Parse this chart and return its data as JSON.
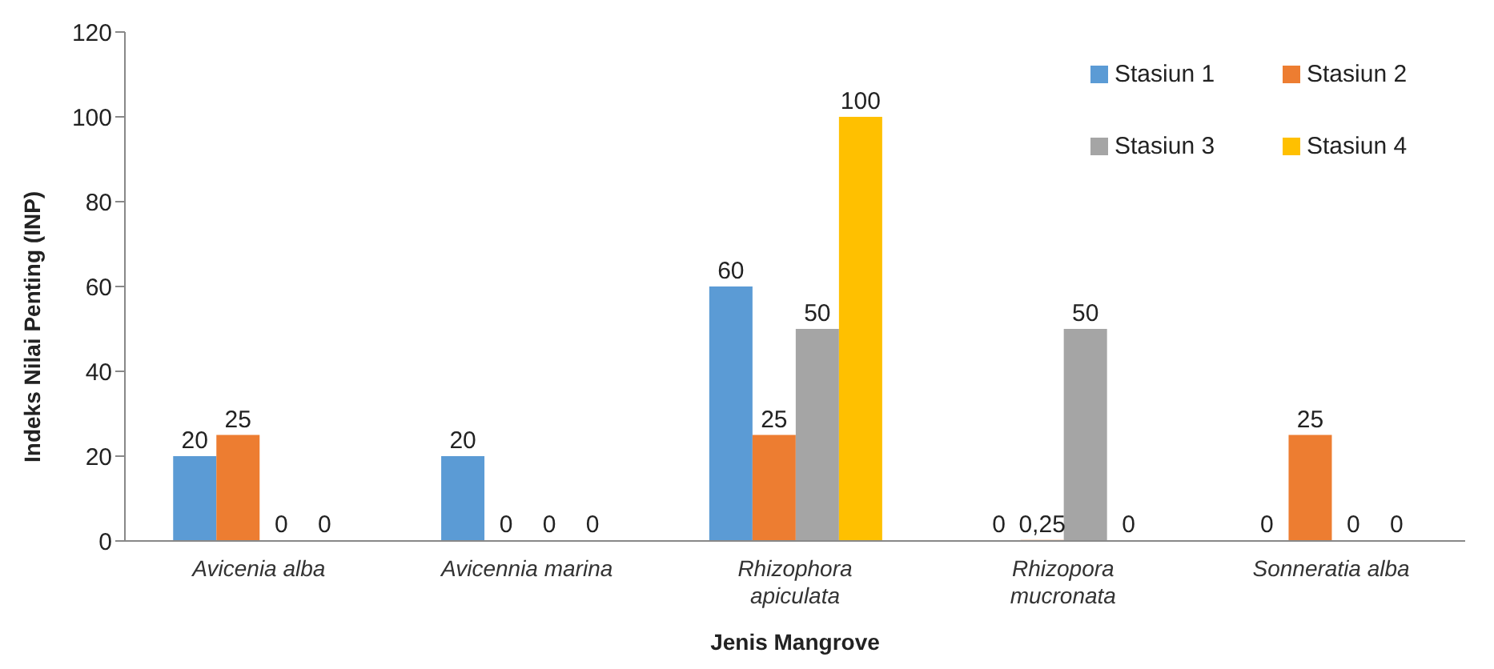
{
  "chart_data": {
    "type": "bar",
    "xlabel": "Jenis Mangrove",
    "ylabel": "Indeks Nilai Penting (INP)",
    "categories": [
      "Avicenia alba",
      "Avicennia marina",
      "Rhizophora apiculata",
      "Rhizopora mucronata",
      "Sonneratia alba"
    ],
    "series": [
      {
        "name": "Stasiun 1",
        "color": "#5b9bd5",
        "values": [
          20,
          20,
          60,
          0,
          0
        ]
      },
      {
        "name": "Stasiun 2",
        "color": "#ed7d31",
        "values": [
          25,
          0,
          25,
          0.25,
          25
        ],
        "value_labels": [
          "25",
          "0",
          "25",
          "0,25",
          "25"
        ]
      },
      {
        "name": "Stasiun 3",
        "color": "#a5a5a5",
        "values": [
          0,
          0,
          50,
          50,
          0
        ]
      },
      {
        "name": "Stasiun 4",
        "color": "#ffc000",
        "values": [
          0,
          0,
          100,
          0,
          0
        ]
      }
    ],
    "ylim": [
      0,
      120
    ],
    "yticks": [
      0,
      20,
      40,
      60,
      80,
      100,
      120
    ],
    "grid": false,
    "legend": "top right",
    "data_labels": true
  }
}
